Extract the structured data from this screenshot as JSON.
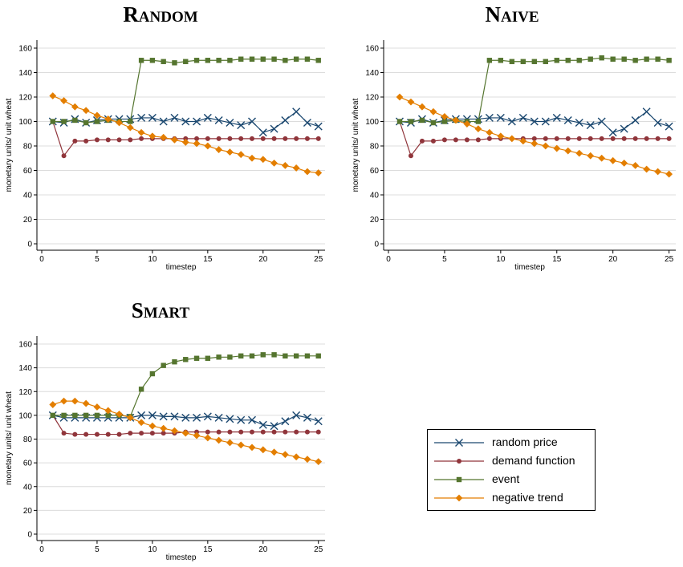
{
  "chart_data": [
    {
      "type": "line",
      "title": "Random",
      "xlabel": "timestep",
      "ylabel": "monetary units/ unit wheat",
      "xlim": [
        1,
        25
      ],
      "ylim": [
        0,
        160
      ],
      "xticks": [
        0,
        5,
        10,
        15,
        20,
        25
      ],
      "yticks": [
        0,
        20,
        40,
        60,
        80,
        100,
        120,
        140,
        160
      ],
      "grid": "horizontal",
      "x": [
        1,
        2,
        3,
        4,
        5,
        6,
        7,
        8,
        9,
        10,
        11,
        12,
        13,
        14,
        15,
        16,
        17,
        18,
        19,
        20,
        21,
        22,
        23,
        24,
        25
      ],
      "series": [
        {
          "name": "random price",
          "color": "#1a476f",
          "marker": "x",
          "values": [
            100,
            99,
            102,
            99,
            101,
            102,
            102,
            102,
            103,
            103,
            100,
            103,
            100,
            100,
            103,
            101,
            99,
            97,
            100,
            91,
            94,
            101,
            108,
            99,
            96
          ]
        },
        {
          "name": "demand function",
          "color": "#90353b",
          "marker": "circle",
          "values": [
            100,
            72,
            84,
            84,
            85,
            85,
            85,
            85,
            86,
            86,
            86,
            86,
            86,
            86,
            86,
            86,
            86,
            86,
            86,
            86,
            86,
            86,
            86,
            86,
            86
          ]
        },
        {
          "name": "event",
          "color": "#55752f",
          "marker": "square",
          "values": [
            100,
            100,
            101,
            99,
            100,
            101,
            100,
            100,
            150,
            150,
            149,
            148,
            149,
            150,
            150,
            150,
            150,
            151,
            151,
            151,
            151,
            150,
            151,
            151,
            150
          ]
        },
        {
          "name": "negative trend",
          "color": "#e37e00",
          "marker": "diamond",
          "values": [
            121,
            117,
            112,
            109,
            105,
            102,
            99,
            95,
            91,
            88,
            87,
            85,
            83,
            82,
            80,
            77,
            75,
            73,
            70,
            69,
            66,
            64,
            62,
            59,
            58
          ]
        }
      ]
    },
    {
      "type": "line",
      "title": "Naive",
      "xlabel": "timestep",
      "ylabel": "monetary units/ unit wheat",
      "xlim": [
        1,
        25
      ],
      "ylim": [
        0,
        160
      ],
      "xticks": [
        0,
        5,
        10,
        15,
        20,
        25
      ],
      "yticks": [
        0,
        20,
        40,
        60,
        80,
        100,
        120,
        140,
        160
      ],
      "grid": "horizontal",
      "x": [
        1,
        2,
        3,
        4,
        5,
        6,
        7,
        8,
        9,
        10,
        11,
        12,
        13,
        14,
        15,
        16,
        17,
        18,
        19,
        20,
        21,
        22,
        23,
        24,
        25
      ],
      "series": [
        {
          "name": "random price",
          "color": "#1a476f",
          "marker": "x",
          "values": [
            100,
            99,
            102,
            99,
            101,
            102,
            102,
            102,
            103,
            103,
            100,
            103,
            100,
            100,
            103,
            101,
            99,
            97,
            100,
            91,
            94,
            101,
            108,
            99,
            96
          ]
        },
        {
          "name": "demand function",
          "color": "#90353b",
          "marker": "circle",
          "values": [
            100,
            72,
            84,
            84,
            85,
            85,
            85,
            85,
            86,
            86,
            86,
            86,
            86,
            86,
            86,
            86,
            86,
            86,
            86,
            86,
            86,
            86,
            86,
            86,
            86
          ]
        },
        {
          "name": "event",
          "color": "#55752f",
          "marker": "square",
          "values": [
            100,
            100,
            101,
            99,
            100,
            101,
            100,
            100,
            150,
            150,
            149,
            149,
            149,
            149,
            150,
            150,
            150,
            151,
            152,
            151,
            151,
            150,
            151,
            151,
            150
          ]
        },
        {
          "name": "negative trend",
          "color": "#e37e00",
          "marker": "diamond",
          "values": [
            120,
            116,
            112,
            108,
            104,
            101,
            98,
            94,
            91,
            88,
            86,
            84,
            82,
            80,
            78,
            76,
            74,
            72,
            70,
            68,
            66,
            64,
            61,
            59,
            57
          ]
        }
      ]
    },
    {
      "type": "line",
      "title": "Smart",
      "xlabel": "timestep",
      "ylabel": "monetary units/ unit wheat",
      "xlim": [
        1,
        25
      ],
      "ylim": [
        0,
        160
      ],
      "xticks": [
        0,
        5,
        10,
        15,
        20,
        25
      ],
      "yticks": [
        0,
        20,
        40,
        60,
        80,
        100,
        120,
        140,
        160
      ],
      "grid": "horizontal",
      "x": [
        1,
        2,
        3,
        4,
        5,
        6,
        7,
        8,
        9,
        10,
        11,
        12,
        13,
        14,
        15,
        16,
        17,
        18,
        19,
        20,
        21,
        22,
        23,
        24,
        25
      ],
      "series": [
        {
          "name": "random price",
          "color": "#1a476f",
          "marker": "x",
          "values": [
            100,
            98,
            98,
            98,
            98,
            98,
            98,
            98,
            100,
            100,
            99,
            99,
            98,
            98,
            99,
            98,
            97,
            96,
            96,
            92,
            91,
            95,
            100,
            98,
            95
          ]
        },
        {
          "name": "demand function",
          "color": "#90353b",
          "marker": "circle",
          "values": [
            100,
            85,
            84,
            84,
            84,
            84,
            84,
            85,
            85,
            85,
            85,
            85,
            86,
            86,
            86,
            86,
            86,
            86,
            86,
            86,
            86,
            86,
            86,
            86,
            86
          ]
        },
        {
          "name": "event",
          "color": "#55752f",
          "marker": "square",
          "values": [
            100,
            100,
            100,
            100,
            100,
            100,
            100,
            99,
            122,
            135,
            142,
            145,
            147,
            148,
            148,
            149,
            149,
            150,
            150,
            151,
            151,
            150,
            150,
            150,
            150
          ]
        },
        {
          "name": "negative trend",
          "color": "#e37e00",
          "marker": "diamond",
          "values": [
            109,
            112,
            112,
            110,
            107,
            104,
            101,
            98,
            94,
            91,
            89,
            87,
            85,
            83,
            81,
            79,
            77,
            75,
            73,
            71,
            69,
            67,
            65,
            63,
            61
          ]
        }
      ]
    }
  ],
  "legend": {
    "items": [
      {
        "label": "random price",
        "color": "#1a476f",
        "marker": "x"
      },
      {
        "label": "demand function",
        "color": "#90353b",
        "marker": "circle"
      },
      {
        "label": "event",
        "color": "#55752f",
        "marker": "square"
      },
      {
        "label": "negative trend",
        "color": "#e37e00",
        "marker": "diamond"
      }
    ]
  }
}
